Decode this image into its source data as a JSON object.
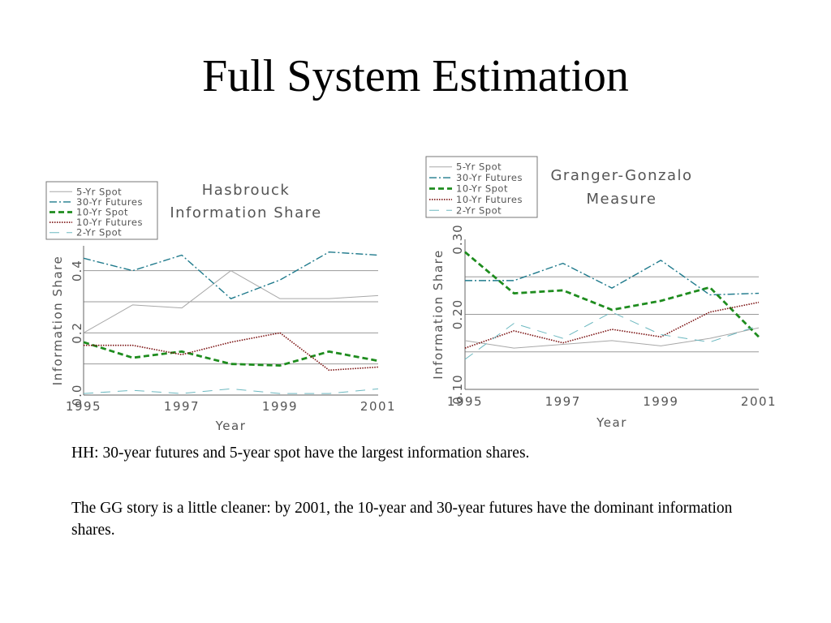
{
  "slide": {
    "title": "Full System Estimation",
    "paragraphs": [
      "HH: 30-year futures and 5-year spot have the largest information shares.",
      "The GG story is a little cleaner: by 2001, the 10-year and 30-year futures have the dominant information shares."
    ]
  },
  "colors": {
    "5-Yr Spot": "#a8a8a8",
    "30-Yr Futures": "#1f7a8c",
    "10-Yr Spot": "#1e8c1e",
    "10-Yr Futures": "#7a1010",
    "2-Yr Spot": "#6cb8c0"
  },
  "chart_data": [
    {
      "type": "line",
      "title_lines": [
        "Hasbrouck",
        "Information Share"
      ],
      "xlabel": "Year",
      "ylabel": "Information Share",
      "x": [
        1995,
        1996,
        1997,
        1998,
        1999,
        2000,
        2001
      ],
      "xticks": [
        1995,
        1997,
        1999,
        2001
      ],
      "ylim": [
        0.0,
        0.48
      ],
      "yticks": [
        0.0,
        0.2,
        0.4
      ],
      "ytick_labels": [
        "0.0",
        "0.2",
        "0.4"
      ],
      "gridlines": [
        0.1,
        0.2,
        0.3,
        0.4
      ],
      "legend_position": "top-left",
      "series": [
        {
          "name": "5-Yr Spot",
          "style": "solid-thin",
          "values": [
            0.2,
            0.29,
            0.28,
            0.4,
            0.31,
            0.31,
            0.32
          ]
        },
        {
          "name": "30-Yr Futures",
          "style": "dashdot",
          "values": [
            0.44,
            0.4,
            0.45,
            0.31,
            0.37,
            0.46,
            0.45
          ]
        },
        {
          "name": "10-Yr Spot",
          "style": "dashed-bold",
          "values": [
            0.17,
            0.12,
            0.14,
            0.1,
            0.095,
            0.14,
            0.11
          ]
        },
        {
          "name": "10-Yr Futures",
          "style": "dotted",
          "values": [
            0.16,
            0.16,
            0.13,
            0.17,
            0.2,
            0.08,
            0.09
          ]
        },
        {
          "name": "2-Yr Spot",
          "style": "longdash-light",
          "values": [
            0.005,
            0.015,
            0.005,
            0.02,
            0.005,
            0.005,
            0.02
          ]
        }
      ]
    },
    {
      "type": "line",
      "title_lines": [
        "Granger-Gonzalo",
        "Measure"
      ],
      "xlabel": "Year",
      "ylabel": "Information Share",
      "x": [
        1995,
        1996,
        1997,
        1998,
        1999,
        2000,
        2001
      ],
      "xticks": [
        1995,
        1997,
        1999,
        2001
      ],
      "ylim": [
        0.1,
        0.3
      ],
      "yticks": [
        0.1,
        0.2,
        0.3
      ],
      "ytick_labels": [
        "0.10",
        "0.20",
        "0.30"
      ],
      "gridlines": [
        0.15,
        0.2,
        0.25
      ],
      "legend_position": "top-left",
      "series": [
        {
          "name": "5-Yr Spot",
          "style": "solid-thin",
          "values": [
            0.165,
            0.155,
            0.16,
            0.165,
            0.158,
            0.168,
            0.182
          ]
        },
        {
          "name": "30-Yr Futures",
          "style": "dashdot",
          "values": [
            0.245,
            0.245,
            0.268,
            0.235,
            0.272,
            0.226,
            0.228
          ]
        },
        {
          "name": "10-Yr Spot",
          "style": "dashed-bold",
          "values": [
            0.283,
            0.228,
            0.232,
            0.206,
            0.218,
            0.236,
            0.17
          ]
        },
        {
          "name": "10-Yr Futures",
          "style": "dotted",
          "values": [
            0.155,
            0.178,
            0.162,
            0.18,
            0.17,
            0.203,
            0.216
          ]
        },
        {
          "name": "2-Yr Spot",
          "style": "longdash-light",
          "values": [
            0.14,
            0.188,
            0.168,
            0.203,
            0.173,
            0.163,
            0.185
          ]
        }
      ]
    }
  ]
}
